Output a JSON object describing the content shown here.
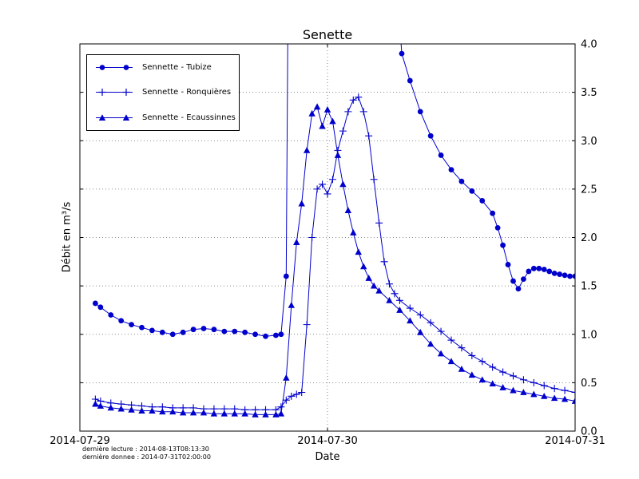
{
  "figure": {
    "title": "Senette",
    "xlabel": "Date",
    "ylabel": "Débit en m³/s",
    "footer_lines": [
      "dernière lecture : 2014-08-13T08:13:30",
      "dernière donnee : 2014-07-31T02:00:00"
    ]
  },
  "chart_data": {
    "type": "line",
    "title": "Senette",
    "xlabel": "Date",
    "ylabel": "Débit en m³/s",
    "x_unit": "hours since 2014-07-29 00:00",
    "xlim": [
      0,
      48
    ],
    "ylim": [
      0,
      4.0
    ],
    "grid": true,
    "legend_position": "upper left",
    "x_ticks": [
      {
        "pos": 0,
        "label": "2014-07-29"
      },
      {
        "pos": 24,
        "label": "2014-07-30"
      },
      {
        "pos": 48,
        "label": "2014-07-31"
      }
    ],
    "y_ticks": [
      {
        "value": 0.0,
        "label": "0.0"
      },
      {
        "value": 0.5,
        "label": "0.5"
      },
      {
        "value": 1.0,
        "label": "1.0"
      },
      {
        "value": 1.5,
        "label": "1.5"
      },
      {
        "value": 2.0,
        "label": "2.0"
      },
      {
        "value": 2.5,
        "label": "2.5"
      },
      {
        "value": 3.0,
        "label": "3.0"
      },
      {
        "value": 3.5,
        "label": "3.5"
      },
      {
        "value": 4.0,
        "label": "4.0"
      }
    ],
    "colors": {
      "line": "#0000cc",
      "frame": "#000000",
      "grid": "#666666",
      "background": "#ffffff"
    },
    "series": [
      {
        "name": "Sennette - Tubize",
        "slug": "tubize",
        "marker": "circle",
        "points": [
          [
            1.5,
            1.32
          ],
          [
            2,
            1.28
          ],
          [
            3,
            1.2
          ],
          [
            4,
            1.14
          ],
          [
            5,
            1.1
          ],
          [
            6,
            1.07
          ],
          [
            7,
            1.04
          ],
          [
            8,
            1.02
          ],
          [
            9,
            1.0
          ],
          [
            10,
            1.02
          ],
          [
            11,
            1.05
          ],
          [
            12,
            1.06
          ],
          [
            13,
            1.05
          ],
          [
            14,
            1.03
          ],
          [
            15,
            1.03
          ],
          [
            16,
            1.02
          ],
          [
            17,
            1.0
          ],
          [
            18,
            0.98
          ],
          [
            19,
            0.99
          ],
          [
            19.5,
            1.0
          ],
          [
            20,
            1.6
          ],
          [
            20.2,
            4.8
          ],
          [
            30.6,
            4.8
          ],
          [
            31.2,
            3.9
          ],
          [
            32,
            3.62
          ],
          [
            33,
            3.3
          ],
          [
            34,
            3.05
          ],
          [
            35,
            2.85
          ],
          [
            36,
            2.7
          ],
          [
            37,
            2.58
          ],
          [
            38,
            2.48
          ],
          [
            39,
            2.38
          ],
          [
            40,
            2.25
          ],
          [
            40.5,
            2.1
          ],
          [
            41,
            1.92
          ],
          [
            41.5,
            1.72
          ],
          [
            42,
            1.55
          ],
          [
            42.5,
            1.47
          ],
          [
            43,
            1.57
          ],
          [
            43.5,
            1.65
          ],
          [
            44,
            1.68
          ],
          [
            44.5,
            1.68
          ],
          [
            45,
            1.67
          ],
          [
            45.5,
            1.65
          ],
          [
            46,
            1.63
          ],
          [
            46.5,
            1.62
          ],
          [
            47,
            1.61
          ],
          [
            47.5,
            1.6
          ],
          [
            48,
            1.6
          ]
        ]
      },
      {
        "name": "Sennette - Ronquières",
        "slug": "ronquieres",
        "marker": "plus",
        "points": [
          [
            1.5,
            0.33
          ],
          [
            2,
            0.31
          ],
          [
            3,
            0.29
          ],
          [
            4,
            0.28
          ],
          [
            5,
            0.27
          ],
          [
            6,
            0.26
          ],
          [
            7,
            0.25
          ],
          [
            8,
            0.25
          ],
          [
            9,
            0.24
          ],
          [
            10,
            0.24
          ],
          [
            11,
            0.24
          ],
          [
            12,
            0.23
          ],
          [
            13,
            0.23
          ],
          [
            14,
            0.23
          ],
          [
            15,
            0.23
          ],
          [
            16,
            0.22
          ],
          [
            17,
            0.22
          ],
          [
            18,
            0.22
          ],
          [
            19,
            0.22
          ],
          [
            19.5,
            0.25
          ],
          [
            20,
            0.32
          ],
          [
            20.5,
            0.36
          ],
          [
            21,
            0.38
          ],
          [
            21.5,
            0.4
          ],
          [
            22,
            1.1
          ],
          [
            22.5,
            2.0
          ],
          [
            23,
            2.5
          ],
          [
            23.5,
            2.55
          ],
          [
            24,
            2.45
          ],
          [
            24.5,
            2.6
          ],
          [
            25,
            2.9
          ],
          [
            25.5,
            3.1
          ],
          [
            26,
            3.3
          ],
          [
            26.5,
            3.42
          ],
          [
            27,
            3.45
          ],
          [
            27.5,
            3.3
          ],
          [
            28,
            3.05
          ],
          [
            28.5,
            2.6
          ],
          [
            29,
            2.15
          ],
          [
            29.5,
            1.75
          ],
          [
            30,
            1.52
          ],
          [
            30.5,
            1.42
          ],
          [
            31,
            1.35
          ],
          [
            32,
            1.27
          ],
          [
            33,
            1.2
          ],
          [
            34,
            1.12
          ],
          [
            35,
            1.03
          ],
          [
            36,
            0.94
          ],
          [
            37,
            0.86
          ],
          [
            38,
            0.78
          ],
          [
            39,
            0.72
          ],
          [
            40,
            0.66
          ],
          [
            41,
            0.61
          ],
          [
            42,
            0.57
          ],
          [
            43,
            0.53
          ],
          [
            44,
            0.5
          ],
          [
            45,
            0.47
          ],
          [
            46,
            0.44
          ],
          [
            47,
            0.42
          ],
          [
            48,
            0.4
          ]
        ]
      },
      {
        "name": "Sennette - Ecaussinnes",
        "slug": "ecaussinnes",
        "marker": "triangle",
        "points": [
          [
            1.5,
            0.28
          ],
          [
            2,
            0.26
          ],
          [
            3,
            0.24
          ],
          [
            4,
            0.23
          ],
          [
            5,
            0.22
          ],
          [
            6,
            0.21
          ],
          [
            7,
            0.21
          ],
          [
            8,
            0.2
          ],
          [
            9,
            0.2
          ],
          [
            10,
            0.19
          ],
          [
            11,
            0.19
          ],
          [
            12,
            0.19
          ],
          [
            13,
            0.18
          ],
          [
            14,
            0.18
          ],
          [
            15,
            0.18
          ],
          [
            16,
            0.18
          ],
          [
            17,
            0.17
          ],
          [
            18,
            0.17
          ],
          [
            19,
            0.17
          ],
          [
            19.5,
            0.18
          ],
          [
            20,
            0.55
          ],
          [
            20.5,
            1.3
          ],
          [
            21,
            1.95
          ],
          [
            21.5,
            2.35
          ],
          [
            22,
            2.9
          ],
          [
            22.5,
            3.28
          ],
          [
            23,
            3.35
          ],
          [
            23.5,
            3.15
          ],
          [
            24,
            3.32
          ],
          [
            24.5,
            3.2
          ],
          [
            25,
            2.85
          ],
          [
            25.5,
            2.55
          ],
          [
            26,
            2.28
          ],
          [
            26.5,
            2.05
          ],
          [
            27,
            1.85
          ],
          [
            27.5,
            1.7
          ],
          [
            28,
            1.58
          ],
          [
            28.5,
            1.5
          ],
          [
            29,
            1.45
          ],
          [
            30,
            1.35
          ],
          [
            31,
            1.25
          ],
          [
            32,
            1.14
          ],
          [
            33,
            1.02
          ],
          [
            34,
            0.9
          ],
          [
            35,
            0.8
          ],
          [
            36,
            0.72
          ],
          [
            37,
            0.64
          ],
          [
            38,
            0.58
          ],
          [
            39,
            0.53
          ],
          [
            40,
            0.49
          ],
          [
            41,
            0.45
          ],
          [
            42,
            0.42
          ],
          [
            43,
            0.4
          ],
          [
            44,
            0.38
          ],
          [
            45,
            0.36
          ],
          [
            46,
            0.34
          ],
          [
            47,
            0.33
          ],
          [
            48,
            0.31
          ]
        ]
      }
    ]
  }
}
